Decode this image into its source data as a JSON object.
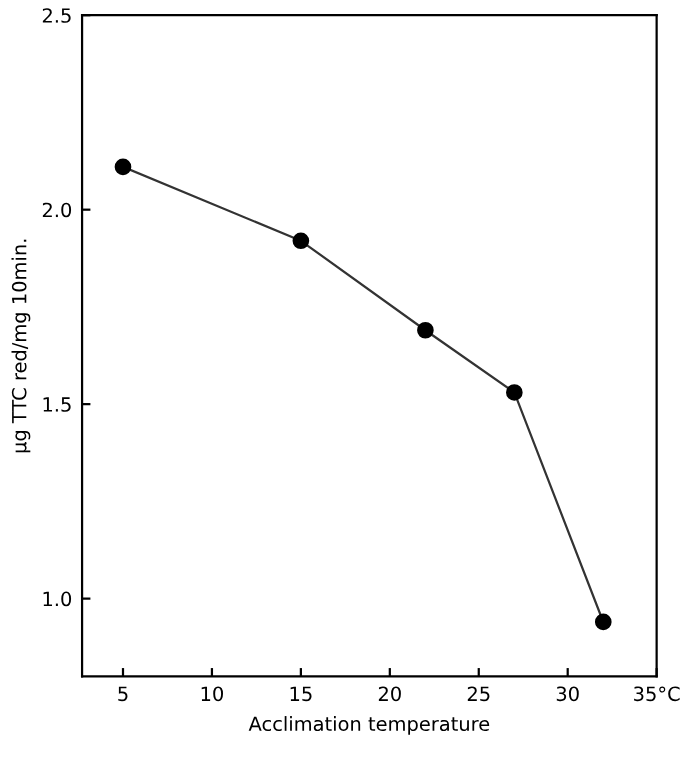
{
  "chart_data": {
    "type": "line",
    "xlabel": "Acclimation temperature",
    "ylabel": "µg TTC red/mg 10min.",
    "x": [
      5,
      15,
      22,
      27,
      32
    ],
    "series": [
      {
        "color": "#333333",
        "values": [
          2.11,
          1.92,
          1.69,
          1.53,
          0.94
        ]
      }
    ],
    "xlim": [
      2.7,
      35
    ],
    "xticks": [
      5,
      10,
      15,
      20,
      25,
      30,
      {
        "value": 35,
        "label": "35°C"
      }
    ],
    "ylim": [
      0.8,
      2.5
    ],
    "yticks": [
      {
        "value": 1.0,
        "label": "1.0"
      },
      1.5,
      {
        "value": 2.0,
        "label": "2.0"
      },
      2.5
    ],
    "marker": "circle",
    "line_style": "solid",
    "grid": false,
    "legend": false
  }
}
